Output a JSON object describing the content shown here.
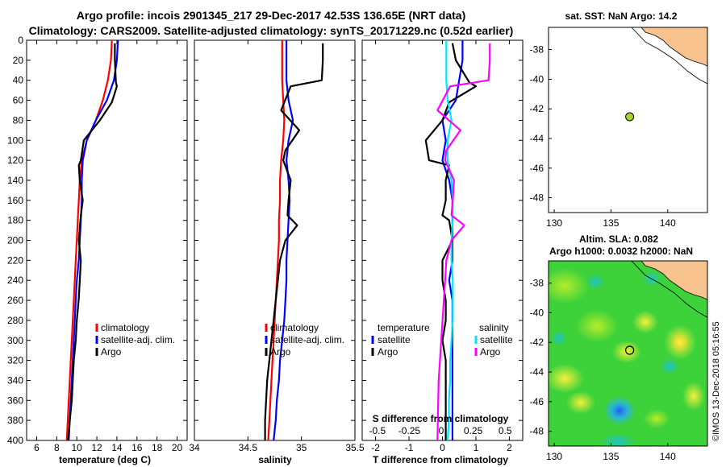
{
  "title": {
    "line1": "Argo profile: incois 2901345_217 29-Dec-2017 42.53S 136.65E (NRT data)",
    "line2": "Climatology: CARS2009. Satellite-adjusted climatology: synTS_20171229.nc (0.52d earlier)"
  },
  "colors": {
    "climatology": "#ff0000",
    "satellite_adj": "#0000ff",
    "argo": "#000000",
    "salinity_satellite": "#00e5ff",
    "salinity_argo": "#ff00ff",
    "land": "#f9c38f",
    "argo_marker": "#a6d52a"
  },
  "depth_ticks": [
    "0",
    "20",
    "40",
    "60",
    "80",
    "100",
    "120",
    "140",
    "160",
    "180",
    "200",
    "220",
    "240",
    "260",
    "280",
    "300",
    "320",
    "340",
    "360",
    "380",
    "400"
  ],
  "chart_data": [
    {
      "id": "temperature",
      "type": "line",
      "xlabel": "temperature (deg C)",
      "ylabel": "",
      "xlim": [
        5,
        21
      ],
      "ylim": [
        400,
        0
      ],
      "xticks": [
        "6",
        "8",
        "10",
        "12",
        "14",
        "16",
        "18",
        "20"
      ],
      "xtick_values": [
        6,
        8,
        10,
        12,
        14,
        16,
        18,
        20
      ],
      "legend": [
        "climatology",
        "satellite-adj. clim.",
        "Argo"
      ],
      "series": [
        {
          "name": "climatology",
          "color": "#ff0000",
          "x": [
            13.5,
            13.4,
            13.1,
            12.6,
            11.9,
            11.0,
            10.5,
            10.3,
            10.2,
            10.1,
            10.0,
            9.9,
            9.8,
            9.7,
            9.6,
            9.5,
            9.4,
            9.3,
            9.2,
            9.1,
            9.0
          ],
          "y": [
            0,
            20,
            40,
            60,
            80,
            100,
            120,
            140,
            160,
            180,
            200,
            220,
            240,
            260,
            280,
            300,
            320,
            340,
            360,
            380,
            400
          ]
        },
        {
          "name": "satellite-adj. clim.",
          "color": "#0000ff",
          "x": [
            14.1,
            14.0,
            13.7,
            13.0,
            11.9,
            11.0,
            10.6,
            10.5,
            10.5,
            10.4,
            10.3,
            10.2,
            10.0,
            9.9,
            9.8,
            9.7,
            9.6,
            9.5,
            9.4,
            9.3,
            9.2
          ],
          "y": [
            0,
            20,
            40,
            60,
            80,
            100,
            120,
            140,
            160,
            180,
            200,
            220,
            240,
            260,
            280,
            300,
            320,
            340,
            360,
            380,
            400
          ]
        },
        {
          "name": "Argo",
          "color": "#000000",
          "x": [
            13.8,
            13.8,
            13.9,
            14.0,
            13.5,
            12.3,
            10.7,
            10.4,
            10.2,
            10.3,
            10.6,
            10.4,
            10.2,
            10.4,
            10.3,
            10.2,
            10.0,
            9.9,
            9.7,
            9.6,
            9.5,
            9.3,
            9.2,
            9.1,
            9.1
          ],
          "y": [
            3,
            20,
            42,
            46,
            62,
            80,
            100,
            120,
            125,
            140,
            160,
            175,
            200,
            220,
            240,
            258,
            280,
            300,
            320,
            340,
            360,
            380,
            395,
            400,
            400
          ]
        }
      ]
    },
    {
      "id": "salinity",
      "type": "line",
      "xlabel": "salinity",
      "xlim": [
        34.0,
        35.5
      ],
      "ylim": [
        400,
        0
      ],
      "xticks": [
        "34",
        "34.5",
        "35",
        "35.5"
      ],
      "xtick_values": [
        34.0,
        34.5,
        35.0,
        35.5
      ],
      "legend": [
        "climatology",
        "satellite-adj. clim.",
        "Argo"
      ],
      "series": [
        {
          "name": "climatology",
          "color": "#ff0000",
          "x": [
            34.82,
            34.82,
            34.82,
            34.83,
            34.84,
            34.83,
            34.81,
            34.8,
            34.8,
            34.79,
            34.79,
            34.78,
            34.77,
            34.76,
            34.75,
            34.74,
            34.73,
            34.72,
            34.71,
            34.7,
            34.69
          ],
          "y": [
            0,
            20,
            40,
            60,
            80,
            100,
            120,
            140,
            160,
            180,
            200,
            220,
            240,
            260,
            280,
            300,
            320,
            340,
            360,
            380,
            400
          ]
        },
        {
          "name": "satellite-adj. clim.",
          "color": "#0000ff",
          "x": [
            34.86,
            34.86,
            34.86,
            34.88,
            34.92,
            34.88,
            34.86,
            34.88,
            34.89,
            34.88,
            34.87,
            34.86,
            34.86,
            34.85,
            34.84,
            34.82,
            34.8,
            34.79,
            34.77,
            34.76,
            34.74
          ],
          "y": [
            0,
            20,
            40,
            60,
            80,
            100,
            120,
            140,
            160,
            180,
            200,
            220,
            240,
            260,
            280,
            300,
            320,
            340,
            360,
            380,
            400
          ]
        },
        {
          "name": "Argo",
          "color": "#000000",
          "x": [
            35.2,
            35.2,
            35.19,
            34.9,
            34.81,
            34.98,
            34.85,
            34.83,
            34.9,
            34.88,
            34.87,
            34.96,
            34.85,
            34.8,
            34.78,
            34.76,
            34.74,
            34.72,
            34.7,
            34.68,
            34.66,
            34.66
          ],
          "y": [
            3,
            20,
            40,
            46,
            70,
            90,
            110,
            120,
            140,
            160,
            175,
            185,
            200,
            220,
            240,
            260,
            280,
            300,
            320,
            340,
            380,
            400
          ]
        }
      ]
    },
    {
      "id": "differences",
      "type": "line",
      "xlabel": "T difference from climatology",
      "xlabel_top": "S difference from climatology",
      "xlim": [
        -2.4,
        2.4
      ],
      "ylim": [
        400,
        0
      ],
      "xticks": [
        "-2",
        "-1",
        "0",
        "1",
        "2"
      ],
      "xtick_values": [
        -2,
        -1,
        0,
        1,
        2
      ],
      "sticks": [
        "-0.5",
        "-0.25",
        "0",
        "0.25",
        "0.5"
      ],
      "stick_values": [
        -0.5,
        -0.25,
        0,
        0.25,
        0.5
      ],
      "legend_temperature": [
        "temperature",
        "satellite",
        "Argo"
      ],
      "legend_salinity": [
        "salinity",
        "satellite",
        "Argo"
      ],
      "series": [
        {
          "name": "temperature satellite",
          "color": "#0000ff",
          "x": [
            0.6,
            0.6,
            0.5,
            0.4,
            0.0,
            0.1,
            0.0,
            0.2,
            0.3,
            0.3,
            0.3,
            0.3,
            0.2,
            0.3,
            0.3,
            0.3,
            0.3,
            0.3,
            0.3,
            0.3,
            0.3
          ],
          "y": [
            0,
            20,
            40,
            60,
            80,
            100,
            120,
            140,
            160,
            180,
            200,
            220,
            240,
            260,
            280,
            300,
            320,
            340,
            360,
            380,
            400
          ]
        },
        {
          "name": "temperature Argo",
          "color": "#000000",
          "x": [
            0.3,
            0.4,
            0.8,
            1.0,
            0.2,
            0.0,
            -0.5,
            -0.4,
            0.2,
            0.1,
            0.1,
            0.0,
            0.2,
            0.3,
            0.0,
            0.0,
            0.1,
            0.1,
            0.0,
            0.1,
            0.1,
            0.1,
            0.1
          ],
          "y": [
            3,
            20,
            42,
            46,
            62,
            80,
            100,
            120,
            125,
            140,
            160,
            175,
            180,
            200,
            220,
            240,
            260,
            280,
            300,
            320,
            340,
            380,
            400
          ]
        },
        {
          "name": "salinity satellite",
          "color": "#00e5ff",
          "x": [
            0.04,
            0.04,
            0.04,
            0.05,
            0.08,
            0.05,
            0.05,
            0.08,
            0.09,
            0.09,
            0.08,
            0.08,
            0.09,
            0.09,
            0.09,
            0.08,
            0.07,
            0.07,
            0.06,
            0.06,
            0.05
          ],
          "y": [
            0,
            20,
            40,
            60,
            80,
            100,
            120,
            140,
            160,
            180,
            200,
            220,
            240,
            260,
            280,
            300,
            320,
            340,
            360,
            380,
            400
          ]
        },
        {
          "name": "salinity Argo",
          "color": "#ff00ff",
          "x": [
            0.38,
            0.38,
            0.37,
            0.07,
            -0.03,
            0.15,
            0.04,
            0.03,
            0.1,
            0.09,
            0.08,
            0.18,
            0.08,
            0.04,
            0.03,
            0.02,
            0.01,
            0.0,
            -0.01,
            -0.02,
            -0.03
          ],
          "y": [
            3,
            20,
            40,
            46,
            70,
            90,
            110,
            120,
            140,
            160,
            175,
            185,
            200,
            220,
            240,
            260,
            280,
            300,
            320,
            340,
            400
          ]
        }
      ]
    }
  ],
  "sst_map": {
    "title": "sat. SST: NaN Argo: 14.2",
    "xticks": [
      "130",
      "135",
      "140"
    ],
    "yticks": [
      "-38",
      "-40",
      "-42",
      "-44",
      "-46",
      "-48"
    ],
    "lon_range": [
      129.5,
      143.5
    ],
    "lat_range": [
      -49,
      -36.5
    ],
    "argo_lon": 136.65,
    "argo_lat": -42.53
  },
  "sla_map": {
    "title_line1": "Altim. SLA: 0.082",
    "title_line2": "Argo h1000: 0.0032 h2000: NaN",
    "xticks": [
      "130",
      "135",
      "140"
    ],
    "yticks": [
      "-38",
      "-40",
      "-42",
      "-44",
      "-46",
      "-48"
    ],
    "lon_range": [
      129.5,
      143.5
    ],
    "lat_range": [
      -49,
      -36.5
    ],
    "argo_lon": 136.65,
    "argo_lat": -42.53
  },
  "credit": "©IMOS 13-Dec-2018 05:16:55"
}
